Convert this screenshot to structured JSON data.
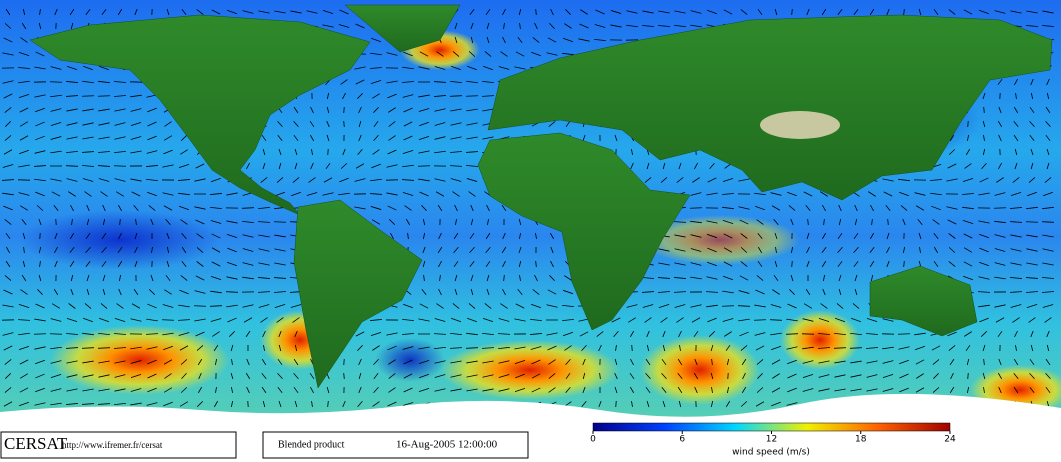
{
  "footer": {
    "logo": "CERSAT",
    "url": "http://www.ifremer.fr/cersat",
    "product": "Blended product",
    "date": "16-Aug-2005 12:00:00"
  },
  "colorbar": {
    "title": "wind speed (m/s)",
    "range": [
      0,
      24
    ],
    "ticks": [
      0,
      6,
      12,
      18,
      24
    ],
    "colors": [
      "#00008c",
      "#0040ff",
      "#00d8ff",
      "#f0f000",
      "#ff6000",
      "#a00000"
    ]
  }
}
